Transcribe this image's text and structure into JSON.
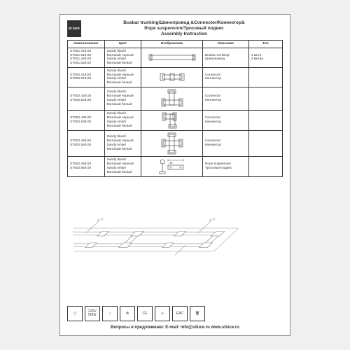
{
  "logo_text": "st\nluce",
  "title_line1": "Busbar trunking/Шинопровод &Connector/Коннектор&",
  "title_line2": "Rope suspension/Тросовый подвес",
  "title_line3": "Assembly Instruction",
  "table": {
    "headers": [
      "Наименование",
      "Цвет",
      "Изображение",
      "Описание",
      "Тип"
    ],
    "rows": [
      {
        "names": "ST001.419.00\nST001.519.00\nST001.429.00\nST001.529.00",
        "colors": "Sandy black/\nМатовый черный\nSandy white/\nМатовый белый",
        "desc": "Busbar trunking/\nШинопровод",
        "type": "1 метр\n2 метра",
        "svg": "<svg width='70' height='14' viewBox='0 0 70 14'><rect x='4' y='4' width='62' height='6' fill='none' stroke='#333' stroke-width='0.6'/><rect x='2' y='3' width='4' height='8' fill='none' stroke='#333' stroke-width='0.6'/><rect x='64' y='3' width='4' height='8' fill='none' stroke='#333' stroke-width='0.6'/></svg>"
      },
      {
        "names": "ST002.419.00\nST002.519.00",
        "colors": "Sandy black/\nМатовый черный\nSandy white/\nМатовый белый",
        "desc": "Connector\nКоннектор",
        "type": "",
        "svg": "<svg width='40' height='16' viewBox='0 0 40 16'><rect x='6' y='5' width='28' height='6' fill='none' stroke='#333' stroke-width='0.6'/><rect x='3' y='3' width='6' height='10' fill='none' stroke='#333' stroke-width='0.6'/><rect x='31' y='3' width='6' height='10' fill='none' stroke='#333' stroke-width='0.6'/><rect x='17' y='3' width='6' height='10' fill='none' stroke='#333' stroke-width='0.6'/></svg>"
      },
      {
        "names": "ST002.429.00\nST002.529.00",
        "colors": "Sandy black/\nМатовый черный\nSandy white/\nМатовый белый",
        "desc": "Connector\nКоннектор",
        "type": "",
        "svg": "<svg width='34' height='28' viewBox='0 0 34 28'><rect x='4' y='16' width='26' height='7' fill='none' stroke='#333' stroke-width='0.6'/><rect x='13' y='3' width='7' height='20' fill='none' stroke='#333' stroke-width='0.6'/><rect x='2' y='14' width='5' height='11' fill='none' stroke='#333' stroke-width='0.6'/><rect x='27' y='14' width='5' height='11' fill='none' stroke='#333' stroke-width='0.6'/><rect x='11' y='1' width='11' height='5' fill='none' stroke='#333' stroke-width='0.6'/></svg>"
      },
      {
        "names": "ST002.439.00\nST002.539.00",
        "colors": "Sandy black/\nМатовый черный\nSandy white/\nМатовый белый",
        "desc": "Connector\nКоннектор",
        "type": "",
        "svg": "<svg width='30' height='24' viewBox='0 0 30 24'><rect x='3' y='3' width='16' height='7' fill='none' stroke='#333' stroke-width='0.6'/><rect x='12' y='3' width='7' height='18' fill='none' stroke='#333' stroke-width='0.6'/><rect x='1' y='1' width='5' height='11' fill='none' stroke='#333' stroke-width='0.6'/><rect x='10' y='18' width='11' height='5' fill='none' stroke='#333' stroke-width='0.6'/><rect x='16' y='1' width='5' height='11' fill='none' stroke='#333' stroke-width='0.6'/></svg>"
      },
      {
        "names": "ST002.449.00\nST002.549.00",
        "colors": "Sandy black/\nМатовый черный\nSandy white/\nМатовый белый",
        "desc": "Connector\nКоннектор",
        "type": "",
        "svg": "<svg width='32' height='32' viewBox='0 0 32 32'><rect x='3' y='12' width='26' height='7' fill='none' stroke='#333' stroke-width='0.6'/><rect x='12' y='3' width='7' height='26' fill='none' stroke='#333' stroke-width='0.6'/><rect x='1' y='10' width='5' height='11' fill='none' stroke='#333' stroke-width='0.6'/><rect x='26' y='10' width='5' height='11' fill='none' stroke='#333' stroke-width='0.6'/><rect x='10' y='1' width='11' height='5' fill='none' stroke='#333' stroke-width='0.6'/><rect x='10' y='26' width='11' height='5' fill='none' stroke='#333' stroke-width='0.6'/></svg>"
      },
      {
        "names": "ST002.459.00\nST002.559.00",
        "colors": "Sandy black/\nМатовый черный\nSandy white/\nМатовый белый",
        "desc": "Rope suspension\nТросовый подвес",
        "type": "",
        "svg": "<svg width='44' height='24' viewBox='0 0 44 24'><circle cx='8' cy='5' r='3' fill='none' stroke='#333' stroke-width='0.6'/><line x1='8' y1='8' x2='8' y2='20' stroke='#333' stroke-width='0.6'/><rect x='4' y='19' width='8' height='3' fill='none' stroke='#333' stroke-width='0.6'/><text x='18' y='8' font-size='4' fill='#333'>40</text><line x1='16' y1='3' x2='38' y2='3' stroke='#333' stroke-width='0.4'/><line x1='16' y1='1' x2='16' y2='5' stroke='#333' stroke-width='0.4'/><line x1='38' y1='1' x2='38' y2='5' stroke='#333' stroke-width='0.4'/><rect x='16' y='10' width='22' height='6' fill='none' stroke='#333' stroke-width='0.6'/><circle cx='20' cy='13' r='1.2' fill='none' stroke='#333' stroke-width='0.4'/><circle cx='34' cy='13' r='1.2' fill='none' stroke='#333' stroke-width='0.4'/></svg>"
      }
    ]
  },
  "icons": [
    "▢",
    "220V\n50Hz",
    "⌂",
    "♻",
    "CE",
    "⚠",
    "EAC",
    "🗑"
  ],
  "footer": "Вопросы и предложения: E-mail: info@stluce.ru   www.stluce.ru",
  "colors": {
    "border": "#333333",
    "bg": "#ffffff"
  }
}
